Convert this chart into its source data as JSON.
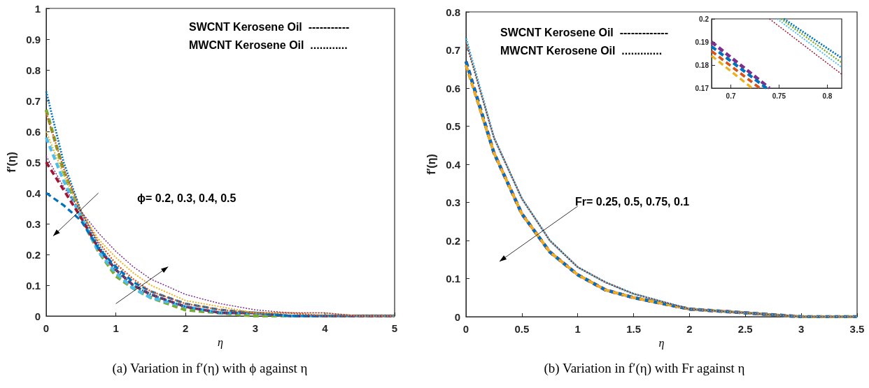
{
  "chart_data": [
    {
      "type": "line",
      "title": "(a) Variation in f′(η) with ϕ against η",
      "xlabel": "η",
      "ylabel": "f′(η)",
      "xlim": [
        0,
        5
      ],
      "ylim": [
        0,
        1
      ],
      "xticks": [
        0,
        1,
        2,
        3,
        4,
        5
      ],
      "yticks": [
        0,
        0.1,
        0.2,
        0.3,
        0.4,
        0.5,
        0.6,
        0.7,
        0.8,
        0.9,
        1
      ],
      "grid": false,
      "marker": "none",
      "annotations": [
        "SWCNT Kerosene Oil  -----------",
        "MWCNT Kerosene Oil  ............",
        "ϕ= 0.2, 0.3, 0.4, 0.5"
      ],
      "x": [
        0,
        0.25,
        0.5,
        0.75,
        1,
        1.25,
        1.5,
        2,
        2.5,
        3,
        3.5,
        4,
        4.5,
        5
      ],
      "series": [
        {
          "color": "#77ac30",
          "line_style": "dashed",
          "values": [
            0.67,
            0.47,
            0.32,
            0.21,
            0.13,
            0.09,
            0.06,
            0.02,
            0.01,
            0,
            0,
            0,
            0,
            0
          ]
        },
        {
          "color": "#4dbeee",
          "line_style": "dashed",
          "values": [
            0.58,
            0.44,
            0.32,
            0.21,
            0.14,
            0.09,
            0.06,
            0.03,
            0.01,
            0.01,
            0,
            0,
            0,
            0
          ]
        },
        {
          "color": "#a2142f",
          "line_style": "dashed",
          "values": [
            0.5,
            0.41,
            0.32,
            0.22,
            0.15,
            0.1,
            0.07,
            0.03,
            0.01,
            0.01,
            0,
            0,
            0,
            0
          ]
        },
        {
          "color": "#0072bd",
          "line_style": "dashed",
          "values": [
            0.4,
            0.36,
            0.31,
            0.22,
            0.16,
            0.11,
            0.08,
            0.04,
            0.02,
            0.01,
            0,
            0,
            0,
            0
          ]
        },
        {
          "color": "#0072bd",
          "line_style": "dotted",
          "values": [
            0.73,
            0.5,
            0.34,
            0.23,
            0.15,
            0.1,
            0.07,
            0.03,
            0.01,
            0.01,
            0,
            0,
            0,
            0
          ]
        },
        {
          "color": "#d95319",
          "line_style": "dotted",
          "values": [
            0.66,
            0.48,
            0.34,
            0.24,
            0.17,
            0.12,
            0.08,
            0.04,
            0.02,
            0.01,
            0.01,
            0,
            0,
            0
          ]
        },
        {
          "color": "#edb120",
          "line_style": "dotted",
          "values": [
            0.6,
            0.46,
            0.34,
            0.25,
            0.19,
            0.14,
            0.1,
            0.05,
            0.03,
            0.01,
            0.01,
            0.01,
            0,
            0
          ]
        },
        {
          "color": "#7e2f8e",
          "line_style": "dotted",
          "values": [
            0.52,
            0.42,
            0.34,
            0.27,
            0.21,
            0.16,
            0.12,
            0.07,
            0.04,
            0.02,
            0.01,
            0.01,
            0,
            0
          ]
        }
      ]
    },
    {
      "type": "line",
      "title": "(b) Variation in f′(η) with Fr against η",
      "xlabel": "η",
      "ylabel": "f′(η)",
      "xlim": [
        0,
        3.5
      ],
      "ylim": [
        0,
        0.8
      ],
      "xticks": [
        0,
        0.5,
        1,
        1.5,
        2,
        2.5,
        3,
        3.5
      ],
      "yticks": [
        0,
        0.1,
        0.2,
        0.3,
        0.4,
        0.5,
        0.6,
        0.7,
        0.8
      ],
      "grid": false,
      "marker": "none",
      "annotations": [
        "SWCNT Kerosene Oil  -------------",
        "MWCNT Kerosene Oil  .............",
        "Fr= 0.25, 0.5, 0.75, 0.1"
      ],
      "x": [
        0,
        0.25,
        0.5,
        0.75,
        1,
        1.25,
        1.5,
        2,
        2.5,
        3,
        3.5
      ],
      "series": [
        {
          "color": "#7e2f8e",
          "line_style": "dashed",
          "values": [
            0.67,
            0.43,
            0.27,
            0.17,
            0.11,
            0.07,
            0.05,
            0.02,
            0.01,
            0,
            0
          ]
        },
        {
          "color": "#0072bd",
          "line_style": "dashed",
          "values": [
            0.67,
            0.43,
            0.27,
            0.17,
            0.11,
            0.07,
            0.05,
            0.02,
            0.01,
            0,
            0
          ]
        },
        {
          "color": "#d95319",
          "line_style": "dashed",
          "values": [
            0.66,
            0.43,
            0.27,
            0.17,
            0.11,
            0.07,
            0.05,
            0.02,
            0.01,
            0,
            0
          ]
        },
        {
          "color": "#edb120",
          "line_style": "dashed",
          "values": [
            0.66,
            0.43,
            0.27,
            0.17,
            0.11,
            0.07,
            0.05,
            0.02,
            0.01,
            0,
            0
          ]
        },
        {
          "color": "#0072bd",
          "line_style": "dotted",
          "values": [
            0.73,
            0.47,
            0.31,
            0.2,
            0.13,
            0.09,
            0.06,
            0.02,
            0.01,
            0,
            0
          ]
        },
        {
          "color": "#77ac30",
          "line_style": "dotted",
          "values": [
            0.72,
            0.47,
            0.31,
            0.2,
            0.13,
            0.09,
            0.06,
            0.02,
            0.01,
            0,
            0
          ]
        },
        {
          "color": "#4dbeee",
          "line_style": "dotted",
          "values": [
            0.73,
            0.47,
            0.31,
            0.2,
            0.13,
            0.09,
            0.06,
            0.02,
            0.01,
            0,
            0
          ]
        },
        {
          "color": "#a2142f",
          "line_style": "dotted",
          "values": [
            0.72,
            0.47,
            0.31,
            0.2,
            0.13,
            0.09,
            0.06,
            0.02,
            0.01,
            0,
            0
          ]
        }
      ]
    },
    {
      "type": "line",
      "xlim": [
        0.68,
        0.815
      ],
      "ylim": [
        0.17,
        0.2
      ],
      "xticks": [
        0.7,
        0.75,
        0.8
      ],
      "yticks": [
        0.17,
        0.18,
        0.19,
        0.2
      ],
      "grid": false,
      "marker": "none",
      "series": [
        {
          "color": "#7e2f8e",
          "line_style": "dashed",
          "x": [
            0.68,
            0.74
          ],
          "values": [
            0.19,
            0.17
          ]
        },
        {
          "color": "#0072bd",
          "line_style": "dashed",
          "x": [
            0.68,
            0.737
          ],
          "values": [
            0.188,
            0.17
          ]
        },
        {
          "color": "#d95319",
          "line_style": "dashed",
          "x": [
            0.68,
            0.73
          ],
          "values": [
            0.186,
            0.17
          ]
        },
        {
          "color": "#edb120",
          "line_style": "dashed",
          "x": [
            0.68,
            0.722
          ],
          "values": [
            0.184,
            0.17
          ]
        },
        {
          "color": "#0072bd",
          "line_style": "dotted",
          "x": [
            0.755,
            0.815
          ],
          "values": [
            0.2,
            0.183
          ]
        },
        {
          "color": "#77ac30",
          "line_style": "dotted",
          "x": [
            0.752,
            0.815
          ],
          "values": [
            0.2,
            0.181
          ]
        },
        {
          "color": "#4dbeee",
          "line_style": "dotted",
          "x": [
            0.748,
            0.815
          ],
          "values": [
            0.2,
            0.179
          ]
        },
        {
          "color": "#a2142f",
          "line_style": "dotted",
          "x": [
            0.74,
            0.815
          ],
          "values": [
            0.2,
            0.176
          ]
        }
      ]
    }
  ]
}
